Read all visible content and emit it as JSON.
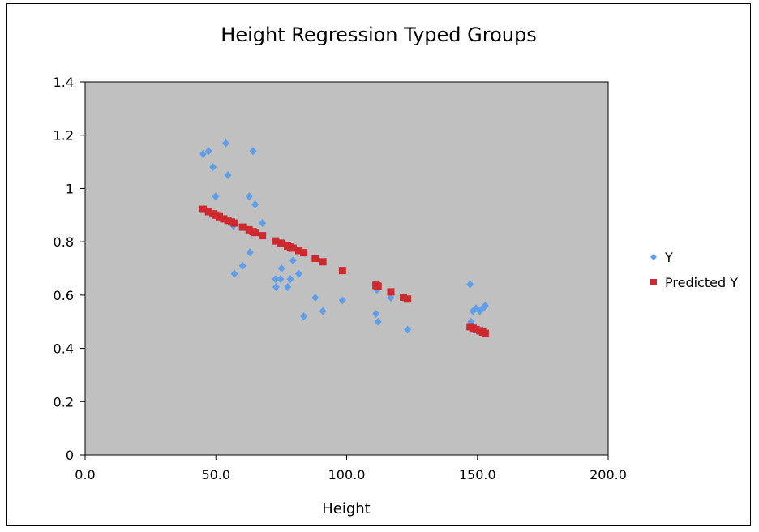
{
  "chart_data": {
    "type": "scatter",
    "title": "Height Regression Typed Groups",
    "xlabel": "Height",
    "ylabel": "",
    "xlim": [
      0,
      200
    ],
    "ylim": [
      0,
      1.4
    ],
    "x_ticks": [
      "0.0",
      "50.0",
      "100.0",
      "150.0",
      "200.0"
    ],
    "y_ticks": [
      "0",
      "0.2",
      "0.4",
      "0.6",
      "0.8",
      "1",
      "1.2",
      "1.4"
    ],
    "x_tick_values": [
      0,
      50,
      100,
      150,
      200
    ],
    "y_tick_values": [
      0,
      0.2,
      0.4,
      0.6,
      0.8,
      1.0,
      1.2,
      1.4
    ],
    "grid": false,
    "legend_position": "right",
    "plot_background": "#c0c0c0",
    "series": [
      {
        "name": "Y",
        "marker": "diamond",
        "color": "#5f9ee8",
        "points": [
          [
            45.1,
            1.13
          ],
          [
            47.2,
            1.14
          ],
          [
            48.9,
            1.08
          ],
          [
            49.9,
            0.97
          ],
          [
            53.8,
            1.17
          ],
          [
            54.6,
            1.05
          ],
          [
            56.7,
            0.86
          ],
          [
            57.1,
            0.68
          ],
          [
            60.2,
            0.71
          ],
          [
            62.7,
            0.97
          ],
          [
            63.0,
            0.76
          ],
          [
            64.2,
            1.14
          ],
          [
            65.0,
            0.94
          ],
          [
            67.8,
            0.87
          ],
          [
            72.8,
            0.66
          ],
          [
            73.0,
            0.63
          ],
          [
            74.7,
            0.66
          ],
          [
            75.1,
            0.7
          ],
          [
            77.4,
            0.63
          ],
          [
            78.5,
            0.66
          ],
          [
            79.5,
            0.73
          ],
          [
            81.7,
            0.68
          ],
          [
            83.6,
            0.52
          ],
          [
            88.0,
            0.59
          ],
          [
            90.9,
            0.54
          ],
          [
            98.4,
            0.58
          ],
          [
            111.2,
            0.53
          ],
          [
            111.6,
            0.62
          ],
          [
            112.0,
            0.5
          ],
          [
            116.9,
            0.59
          ],
          [
            121.7,
            0.59
          ],
          [
            123.3,
            0.47
          ],
          [
            147.2,
            0.64
          ],
          [
            147.6,
            0.5
          ],
          [
            148.3,
            0.54
          ],
          [
            149.5,
            0.55
          ],
          [
            150.9,
            0.54
          ],
          [
            152.0,
            0.55
          ],
          [
            153.0,
            0.56
          ]
        ]
      },
      {
        "name": "Predicted Y",
        "marker": "square",
        "color": "#cc2a2e",
        "points": [
          [
            45.1,
            0.922
          ],
          [
            47.2,
            0.913
          ],
          [
            48.9,
            0.905
          ],
          [
            49.9,
            0.9
          ],
          [
            51.3,
            0.894
          ],
          [
            53.0,
            0.886
          ],
          [
            54.6,
            0.88
          ],
          [
            56.0,
            0.874
          ],
          [
            57.1,
            0.87
          ],
          [
            60.2,
            0.855
          ],
          [
            62.7,
            0.845
          ],
          [
            64.2,
            0.838
          ],
          [
            65.0,
            0.835
          ],
          [
            67.8,
            0.823
          ],
          [
            72.8,
            0.803
          ],
          [
            74.7,
            0.795
          ],
          [
            75.1,
            0.793
          ],
          [
            77.4,
            0.784
          ],
          [
            78.5,
            0.78
          ],
          [
            79.5,
            0.776
          ],
          [
            81.7,
            0.767
          ],
          [
            83.6,
            0.759
          ],
          [
            88.0,
            0.738
          ],
          [
            90.9,
            0.725
          ],
          [
            98.4,
            0.692
          ],
          [
            111.2,
            0.637
          ],
          [
            111.6,
            0.635
          ],
          [
            112.0,
            0.633
          ],
          [
            116.9,
            0.612
          ],
          [
            121.7,
            0.592
          ],
          [
            123.3,
            0.585
          ],
          [
            147.2,
            0.481
          ],
          [
            148.3,
            0.476
          ],
          [
            149.5,
            0.471
          ],
          [
            150.9,
            0.466
          ],
          [
            152.0,
            0.461
          ],
          [
            153.0,
            0.456
          ]
        ]
      }
    ]
  }
}
